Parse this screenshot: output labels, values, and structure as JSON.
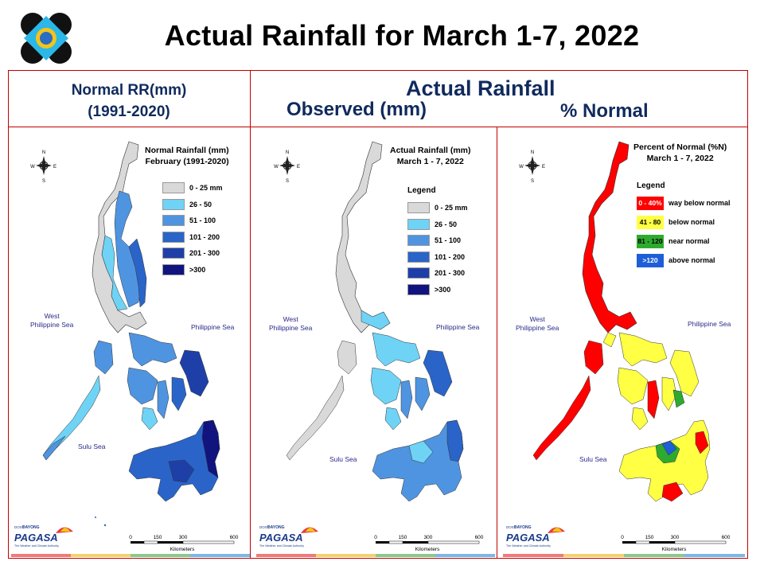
{
  "header": {
    "title": "Actual Rainfall for March 1-7, 2022",
    "normal_label_line1": "Normal RR(mm)",
    "normal_label_line2": "(1991-2020)",
    "actual_label": "Actual Rainfall",
    "observed_label": "Observed (mm)",
    "percent_label": "% Normal"
  },
  "panels": {
    "normal": {
      "title_line1": "Normal Rainfall (mm)",
      "title_line2": "February (1991-2020)",
      "legend_heading": "",
      "legend": [
        {
          "label": "0 - 25 mm",
          "color": "#d9d9d9"
        },
        {
          "label": "26 - 50",
          "color": "#6fd3f6"
        },
        {
          "label": "51 - 100",
          "color": "#4f94e0"
        },
        {
          "label": "101 - 200",
          "color": "#2a64c8"
        },
        {
          "label": "201 - 300",
          "color": "#1f3fa8"
        },
        {
          "label": ">300",
          "color": "#11137e"
        }
      ],
      "seas": {
        "west": "West\nPhilippine Sea",
        "east": "Philippine Sea",
        "sulu": "Sulu Sea"
      }
    },
    "observed": {
      "title_line1": "Actual Rainfall (mm)",
      "title_line2": "March 1 - 7, 2022",
      "legend_heading": "Legend",
      "legend": [
        {
          "label": "0 - 25 mm",
          "color": "#d9d9d9"
        },
        {
          "label": "26 - 50",
          "color": "#6fd3f6"
        },
        {
          "label": "51 - 100",
          "color": "#4f94e0"
        },
        {
          "label": "101 - 200",
          "color": "#2a64c8"
        },
        {
          "label": "201 - 300",
          "color": "#1f3fa8"
        },
        {
          "label": ">300",
          "color": "#11137e"
        }
      ],
      "seas": {
        "west": "West\nPhilippine Sea",
        "east": "Philippine Sea",
        "sulu": "Sulu Sea"
      }
    },
    "percent": {
      "title_line1": "Percent of Normal (%N)",
      "title_line2": "March 1 - 7, 2022",
      "legend_heading": "Legend",
      "legend": [
        {
          "swatch": "0 - 40%",
          "label": "way below normal",
          "color": "#ff0000"
        },
        {
          "swatch": "41 - 80",
          "label": "below normal",
          "color": "#ffff44"
        },
        {
          "swatch": "81 - 120",
          "label": "near normal",
          "color": "#2eaa2e"
        },
        {
          "swatch": ">120",
          "label": "above normal",
          "color": "#1e5fd8"
        }
      ],
      "seas": {
        "west": "West\nPhilippine Sea",
        "east": "Philippine Sea",
        "sulu": "Sulu Sea"
      }
    }
  },
  "scale_bar": {
    "ticks": [
      "0",
      "150",
      "300",
      "600"
    ],
    "unit": "Kilometers"
  },
  "branding": {
    "agency": "PAGASA",
    "sub": "DOST",
    "tag": "DAYONG",
    "motto": "The Weather and Climate Authority"
  },
  "compass": {
    "n": "N",
    "s": "S",
    "e": "E",
    "w": "W"
  },
  "colors": {
    "frame": "#c00000",
    "heading": "#102a5e",
    "strip": [
      "#f07a7a",
      "#f2d36b",
      "#8cc98c",
      "#7ab8e8"
    ]
  }
}
